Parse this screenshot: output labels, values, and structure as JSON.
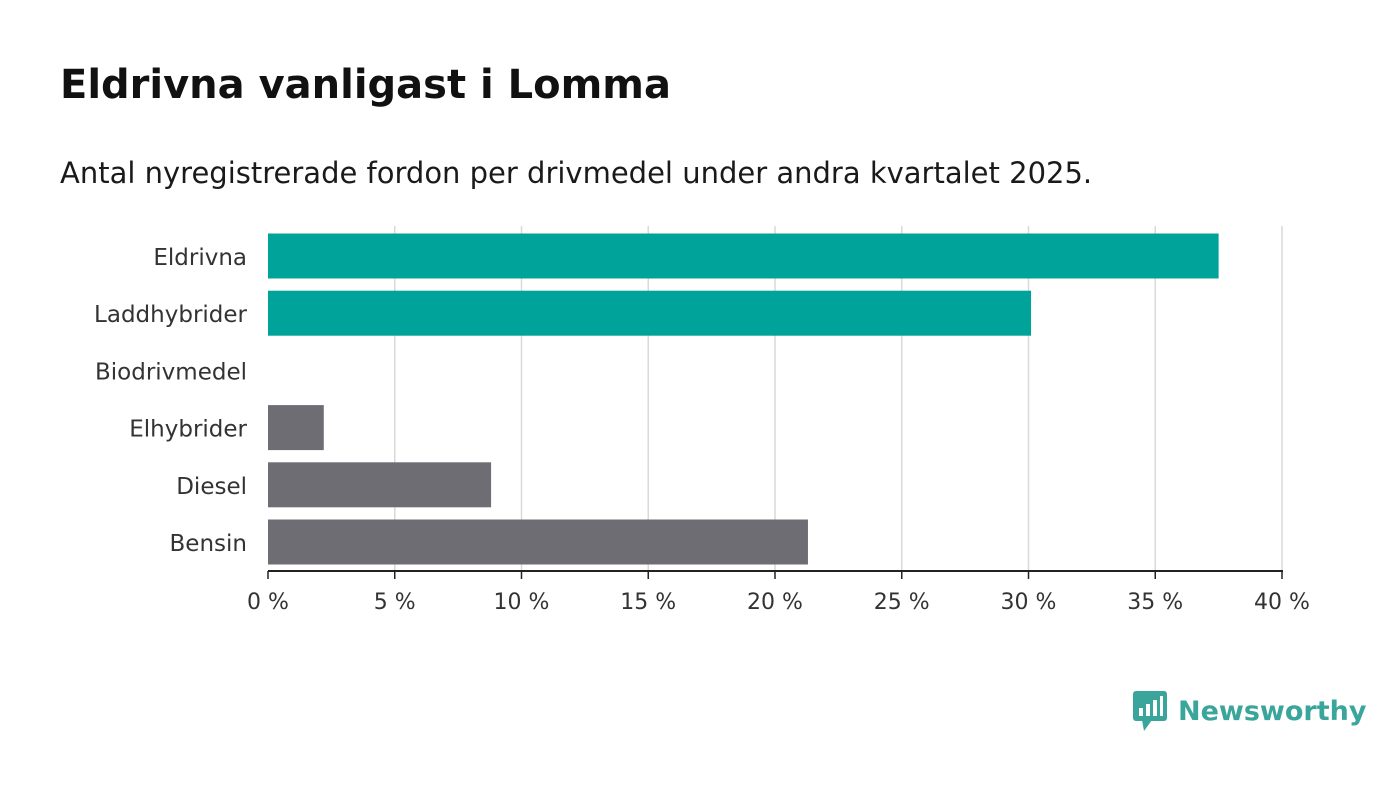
{
  "header": {
    "title": "Eldrivna vanligast i Lomma",
    "subtitle": "Antal nyregistrerade fordon per drivmedel under andra kvartalet 2025."
  },
  "brand": {
    "name": "Newsworthy",
    "icon": "bar-chart-speech-bubble-icon",
    "color": "#3aa59b"
  },
  "colors": {
    "highlight": "#00a39a",
    "other": "#6e6d73",
    "grid": "#d9d9d9",
    "axis": "#222222"
  },
  "chart_data": {
    "type": "bar",
    "orientation": "horizontal",
    "categories": [
      "Eldrivna",
      "Laddhybrider",
      "Biodrivmedel",
      "Elhybrider",
      "Diesel",
      "Bensin"
    ],
    "values": [
      37.5,
      30.1,
      0,
      2.2,
      8.8,
      21.3
    ],
    "bar_colors": [
      "#00a39a",
      "#00a39a",
      "#6e6d73",
      "#6e6d73",
      "#6e6d73",
      "#6e6d73"
    ],
    "xlim": [
      0,
      40
    ],
    "xticks": [
      0,
      5,
      10,
      15,
      20,
      25,
      30,
      35,
      40
    ],
    "xtick_labels": [
      "0 %",
      "5 %",
      "10 %",
      "15 %",
      "20 %",
      "25 %",
      "30 %",
      "35 %",
      "40 %"
    ],
    "grid": true,
    "xlabel": "",
    "ylabel": ""
  }
}
